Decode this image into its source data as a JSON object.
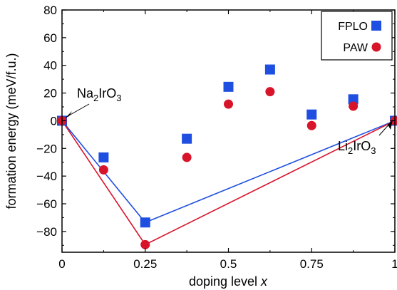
{
  "chart_data": {
    "type": "scatter",
    "xlabel": "doping level",
    "xlabel_var": "x",
    "ylabel": "formation energy (meV/f.u.)",
    "xlim": [
      0,
      1
    ],
    "ylim": [
      -95,
      80
    ],
    "xticks": [
      0,
      0.25,
      0.5,
      0.75,
      1
    ],
    "xtick_labels": [
      "0",
      "0.25",
      "0.5",
      "0.75",
      "1"
    ],
    "yticks": [
      -80,
      -60,
      -40,
      -20,
      0,
      20,
      40,
      60,
      80
    ],
    "ytick_labels": [
      "−80",
      "−60",
      "−40",
      "−20",
      "0",
      "20",
      "40",
      "60",
      "80"
    ],
    "legend_position": "top-right",
    "series": [
      {
        "name": "FPLO",
        "marker": "square",
        "color": "#1f4fe0",
        "x": [
          0,
          0.125,
          0.25,
          0.375,
          0.5,
          0.625,
          0.75,
          0.875,
          1
        ],
        "y": [
          0,
          -26.5,
          -73.5,
          -13,
          24.5,
          37,
          4.5,
          15.5,
          0
        ],
        "hull_x": [
          0,
          0.25,
          1
        ],
        "hull_y": [
          0,
          -73.5,
          0
        ]
      },
      {
        "name": "PAW",
        "marker": "circle",
        "color": "#d8142a",
        "x": [
          0,
          0.125,
          0.25,
          0.375,
          0.5,
          0.625,
          0.75,
          0.875,
          1
        ],
        "y": [
          0,
          -35.5,
          -89.5,
          -26.5,
          12,
          21,
          -3.5,
          10.5,
          0
        ],
        "hull_x": [
          0,
          0.25,
          1
        ],
        "hull_y": [
          0,
          -89.5,
          0
        ]
      }
    ],
    "annotations": [
      {
        "base": "Na",
        "sub1": "2",
        "mid": "IrO",
        "sub2": "3",
        "x": 0,
        "y": 0
      },
      {
        "base": "Li",
        "sub1": "2",
        "mid": "IrO",
        "sub2": "3",
        "x": 1,
        "y": 0
      }
    ]
  }
}
